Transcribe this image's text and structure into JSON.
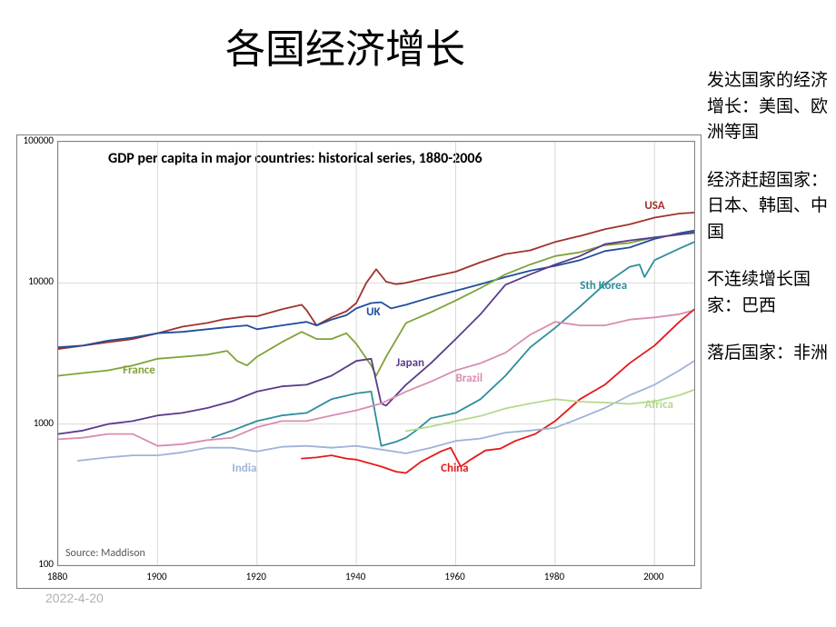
{
  "title": "各国经济增长",
  "notes": {
    "n1": "发达国家的经济增长：美国、欧洲等国",
    "n2": "经济赶超国家：日本、韩国、中国",
    "n3": "不连续增长国家：巴西",
    "n4": "落后国家：非洲"
  },
  "chart": {
    "type": "line",
    "title": "GDP per capita in major countries: historical series, 1880-2006",
    "source": "Source: Maddison",
    "background_color": "#ffffff",
    "border_color": "#7f7f7f",
    "grid_color": "#d9d9d9",
    "xlim": [
      1880,
      2008
    ],
    "ylim_log10": [
      2,
      5
    ],
    "x_ticks": [
      1880,
      1900,
      1920,
      1940,
      1960,
      1980,
      2000
    ],
    "y_ticks": [
      100,
      1000,
      10000,
      100000
    ],
    "label_fontsize": 11,
    "title_fontsize": 16,
    "series_label_fontsize": 13,
    "line_width": 1.8,
    "series": {
      "USA": {
        "color": "#a0322e",
        "label": "USA",
        "label_x": 1998,
        "label_y": 35000,
        "data": [
          [
            1880,
            3400
          ],
          [
            1885,
            3600
          ],
          [
            1890,
            3800
          ],
          [
            1895,
            4000
          ],
          [
            1900,
            4400
          ],
          [
            1905,
            4900
          ],
          [
            1910,
            5200
          ],
          [
            1913,
            5500
          ],
          [
            1918,
            5800
          ],
          [
            1920,
            5800
          ],
          [
            1925,
            6500
          ],
          [
            1929,
            7000
          ],
          [
            1930,
            6400
          ],
          [
            1932,
            5000
          ],
          [
            1935,
            5700
          ],
          [
            1938,
            6300
          ],
          [
            1940,
            7200
          ],
          [
            1942,
            10000
          ],
          [
            1944,
            12500
          ],
          [
            1946,
            10200
          ],
          [
            1948,
            9800
          ],
          [
            1950,
            10000
          ],
          [
            1955,
            11000
          ],
          [
            1960,
            12000
          ],
          [
            1965,
            14000
          ],
          [
            1970,
            16000
          ],
          [
            1975,
            17000
          ],
          [
            1980,
            19500
          ],
          [
            1985,
            21500
          ],
          [
            1990,
            24000
          ],
          [
            1995,
            26000
          ],
          [
            2000,
            29000
          ],
          [
            2005,
            31000
          ],
          [
            2008,
            31500
          ]
        ]
      },
      "UK": {
        "color": "#1f4e9c",
        "label": "UK",
        "label_x": 1942,
        "label_y": 6200,
        "data": [
          [
            1880,
            3500
          ],
          [
            1885,
            3600
          ],
          [
            1890,
            3900
          ],
          [
            1895,
            4100
          ],
          [
            1900,
            4400
          ],
          [
            1905,
            4500
          ],
          [
            1910,
            4700
          ],
          [
            1915,
            4900
          ],
          [
            1918,
            5000
          ],
          [
            1920,
            4700
          ],
          [
            1925,
            5000
          ],
          [
            1930,
            5300
          ],
          [
            1932,
            5000
          ],
          [
            1935,
            5500
          ],
          [
            1938,
            5900
          ],
          [
            1940,
            6600
          ],
          [
            1943,
            7200
          ],
          [
            1945,
            7300
          ],
          [
            1947,
            6600
          ],
          [
            1950,
            7000
          ],
          [
            1955,
            7900
          ],
          [
            1960,
            8800
          ],
          [
            1965,
            9800
          ],
          [
            1970,
            11000
          ],
          [
            1975,
            12200
          ],
          [
            1980,
            13200
          ],
          [
            1985,
            14500
          ],
          [
            1990,
            16800
          ],
          [
            1995,
            17800
          ],
          [
            2000,
            20500
          ],
          [
            2005,
            22500
          ],
          [
            2008,
            23500
          ]
        ]
      },
      "France": {
        "color": "#7ea339",
        "label": "France",
        "label_x": 1893,
        "label_y": 2400,
        "data": [
          [
            1880,
            2200
          ],
          [
            1885,
            2300
          ],
          [
            1890,
            2400
          ],
          [
            1895,
            2600
          ],
          [
            1900,
            2900
          ],
          [
            1905,
            3000
          ],
          [
            1910,
            3100
          ],
          [
            1914,
            3300
          ],
          [
            1916,
            2800
          ],
          [
            1918,
            2600
          ],
          [
            1920,
            3000
          ],
          [
            1925,
            3800
          ],
          [
            1929,
            4500
          ],
          [
            1932,
            4000
          ],
          [
            1935,
            4000
          ],
          [
            1938,
            4400
          ],
          [
            1940,
            3700
          ],
          [
            1943,
            2600
          ],
          [
            1944,
            2200
          ],
          [
            1946,
            3000
          ],
          [
            1950,
            5200
          ],
          [
            1955,
            6200
          ],
          [
            1960,
            7500
          ],
          [
            1965,
            9200
          ],
          [
            1970,
            11500
          ],
          [
            1975,
            13500
          ],
          [
            1980,
            15500
          ],
          [
            1985,
            16500
          ],
          [
            1990,
            18500
          ],
          [
            1995,
            19200
          ],
          [
            2000,
            21000
          ],
          [
            2005,
            22000
          ],
          [
            2008,
            22500
          ]
        ]
      },
      "Japan": {
        "color": "#5b3b8c",
        "label": "Japan",
        "label_x": 1948,
        "label_y": 2700,
        "data": [
          [
            1880,
            850
          ],
          [
            1885,
            900
          ],
          [
            1890,
            1000
          ],
          [
            1895,
            1050
          ],
          [
            1900,
            1150
          ],
          [
            1905,
            1200
          ],
          [
            1910,
            1300
          ],
          [
            1915,
            1450
          ],
          [
            1920,
            1700
          ],
          [
            1925,
            1850
          ],
          [
            1930,
            1900
          ],
          [
            1935,
            2200
          ],
          [
            1940,
            2800
          ],
          [
            1943,
            2900
          ],
          [
            1945,
            1400
          ],
          [
            1946,
            1350
          ],
          [
            1950,
            1900
          ],
          [
            1955,
            2700
          ],
          [
            1960,
            4000
          ],
          [
            1965,
            6000
          ],
          [
            1970,
            9700
          ],
          [
            1975,
            11500
          ],
          [
            1980,
            13500
          ],
          [
            1985,
            15500
          ],
          [
            1990,
            18800
          ],
          [
            1995,
            20000
          ],
          [
            2000,
            21000
          ],
          [
            2005,
            22000
          ],
          [
            2008,
            22800
          ]
        ]
      },
      "SthKorea": {
        "color": "#2f8d9c",
        "label": "Sth Korea",
        "label_x": 1985,
        "label_y": 9500,
        "data": [
          [
            1911,
            800
          ],
          [
            1915,
            900
          ],
          [
            1920,
            1050
          ],
          [
            1925,
            1150
          ],
          [
            1930,
            1200
          ],
          [
            1935,
            1500
          ],
          [
            1940,
            1650
          ],
          [
            1943,
            1700
          ],
          [
            1945,
            700
          ],
          [
            1948,
            750
          ],
          [
            1950,
            800
          ],
          [
            1952,
            900
          ],
          [
            1955,
            1100
          ],
          [
            1960,
            1200
          ],
          [
            1965,
            1500
          ],
          [
            1970,
            2200
          ],
          [
            1975,
            3500
          ],
          [
            1980,
            4800
          ],
          [
            1985,
            6800
          ],
          [
            1990,
            9800
          ],
          [
            1995,
            13000
          ],
          [
            1997,
            13500
          ],
          [
            1998,
            11000
          ],
          [
            2000,
            14500
          ],
          [
            2005,
            17500
          ],
          [
            2008,
            19500
          ]
        ]
      },
      "Brazil": {
        "color": "#d98cb3",
        "label": "Brazil",
        "label_x": 1960,
        "label_y": 2100,
        "data": [
          [
            1880,
            780
          ],
          [
            1885,
            800
          ],
          [
            1890,
            850
          ],
          [
            1895,
            850
          ],
          [
            1900,
            700
          ],
          [
            1905,
            720
          ],
          [
            1910,
            770
          ],
          [
            1915,
            800
          ],
          [
            1920,
            950
          ],
          [
            1925,
            1050
          ],
          [
            1930,
            1050
          ],
          [
            1935,
            1150
          ],
          [
            1940,
            1250
          ],
          [
            1945,
            1400
          ],
          [
            1950,
            1700
          ],
          [
            1955,
            2000
          ],
          [
            1960,
            2400
          ],
          [
            1965,
            2700
          ],
          [
            1970,
            3200
          ],
          [
            1975,
            4300
          ],
          [
            1980,
            5300
          ],
          [
            1985,
            5000
          ],
          [
            1990,
            5000
          ],
          [
            1995,
            5500
          ],
          [
            2000,
            5700
          ],
          [
            2005,
            6000
          ],
          [
            2008,
            6400
          ]
        ]
      },
      "China": {
        "color": "#e41a1c",
        "label": "China",
        "label_x": 1957,
        "label_y": 480,
        "data": [
          [
            1929,
            570
          ],
          [
            1932,
            580
          ],
          [
            1935,
            600
          ],
          [
            1938,
            570
          ],
          [
            1940,
            560
          ],
          [
            1945,
            500
          ],
          [
            1948,
            460
          ],
          [
            1950,
            450
          ],
          [
            1953,
            540
          ],
          [
            1957,
            640
          ],
          [
            1959,
            680
          ],
          [
            1961,
            500
          ],
          [
            1963,
            560
          ],
          [
            1966,
            650
          ],
          [
            1969,
            670
          ],
          [
            1972,
            760
          ],
          [
            1976,
            850
          ],
          [
            1980,
            1050
          ],
          [
            1985,
            1500
          ],
          [
            1990,
            1900
          ],
          [
            1995,
            2700
          ],
          [
            2000,
            3600
          ],
          [
            2005,
            5300
          ],
          [
            2008,
            6500
          ]
        ]
      },
      "India": {
        "color": "#9fb3d9",
        "label": "India",
        "label_x": 1915,
        "label_y": 480,
        "data": [
          [
            1884,
            550
          ],
          [
            1890,
            580
          ],
          [
            1895,
            600
          ],
          [
            1900,
            600
          ],
          [
            1905,
            630
          ],
          [
            1910,
            680
          ],
          [
            1915,
            680
          ],
          [
            1920,
            640
          ],
          [
            1925,
            690
          ],
          [
            1930,
            700
          ],
          [
            1935,
            680
          ],
          [
            1940,
            700
          ],
          [
            1945,
            660
          ],
          [
            1950,
            620
          ],
          [
            1955,
            680
          ],
          [
            1960,
            760
          ],
          [
            1965,
            790
          ],
          [
            1970,
            870
          ],
          [
            1975,
            900
          ],
          [
            1980,
            940
          ],
          [
            1985,
            1100
          ],
          [
            1990,
            1300
          ],
          [
            1995,
            1600
          ],
          [
            2000,
            1900
          ],
          [
            2005,
            2400
          ],
          [
            2008,
            2800
          ]
        ]
      },
      "Africa": {
        "color": "#b5d98d",
        "label": "Africa",
        "label_x": 1998,
        "label_y": 1350,
        "data": [
          [
            1950,
            890
          ],
          [
            1955,
            960
          ],
          [
            1960,
            1050
          ],
          [
            1965,
            1140
          ],
          [
            1970,
            1290
          ],
          [
            1975,
            1400
          ],
          [
            1980,
            1500
          ],
          [
            1985,
            1440
          ],
          [
            1990,
            1420
          ],
          [
            1995,
            1390
          ],
          [
            2000,
            1450
          ],
          [
            2005,
            1600
          ],
          [
            2008,
            1750
          ]
        ]
      }
    }
  },
  "footer_date": "2022-4-20"
}
